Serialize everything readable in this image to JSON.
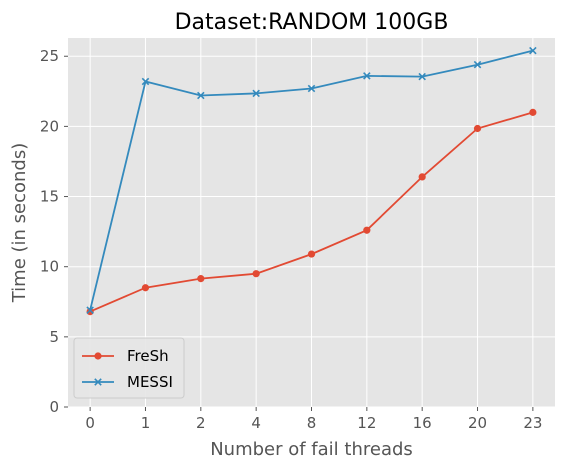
{
  "chart_data": {
    "type": "line",
    "title": "Dataset:RANDOM 100GB",
    "xlabel": "Number of fail threads",
    "ylabel": "Time (in seconds)",
    "categories": [
      "0",
      "1",
      "2",
      "4",
      "8",
      "12",
      "16",
      "20",
      "23"
    ],
    "ylim": [
      0,
      26.3
    ],
    "yticks": [
      0,
      5,
      10,
      15,
      20,
      25
    ],
    "grid": true,
    "legend_position": "lower-left",
    "series": [
      {
        "name": "FreSh",
        "marker": "circle",
        "color": "#E24A33",
        "values": [
          6.8,
          8.5,
          9.15,
          9.5,
          10.9,
          12.6,
          16.4,
          19.85,
          21.0
        ]
      },
      {
        "name": "MESSI",
        "marker": "x",
        "color": "#348ABD",
        "values": [
          6.9,
          23.2,
          22.2,
          22.35,
          22.7,
          23.6,
          23.55,
          24.4,
          25.4
        ]
      }
    ],
    "style": {
      "plot_background": "#E5E5E5",
      "grid_color": "#FFFFFF"
    }
  }
}
